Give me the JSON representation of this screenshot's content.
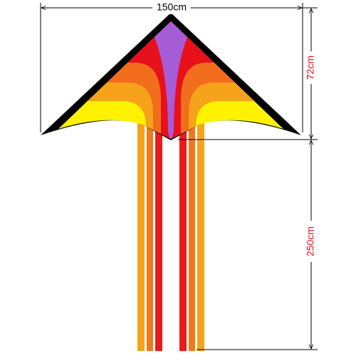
{
  "dimensions": {
    "width": "150cm",
    "height": "72cm",
    "tail_length": "250cm"
  }
}
